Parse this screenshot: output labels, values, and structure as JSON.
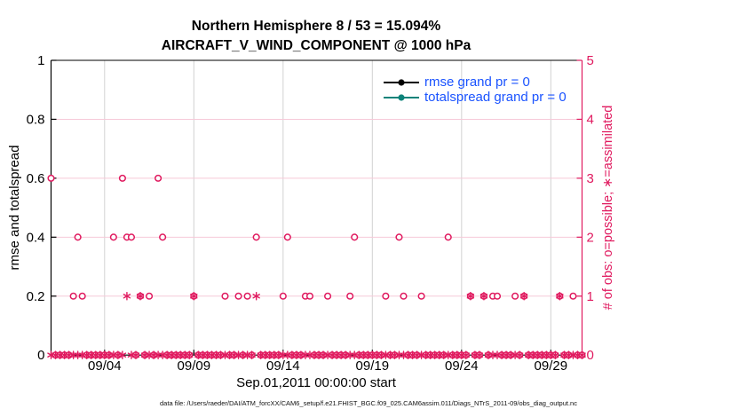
{
  "window": {
    "background": "#ffffff"
  },
  "colors": {
    "obs_pink": "#e01a5f",
    "grid_gray": "#d2d2d2",
    "grid_pink": "#f6c9d8",
    "axis_black": "#000000",
    "legend_text_blue": "#1a53ff",
    "rmse_black": "#000000",
    "totalspread_teal": "#0c837a"
  },
  "header": {
    "title": "Northern Hemisphere 8 / 53 = 15.094%",
    "subtitle": "AIRCRAFT_V_WIND_COMPONENT @ 1000 hPa"
  },
  "footer": {
    "data_file_note": "data file: /Users/raeder/DAI/ATM_forcXX/CAM6_setup/f.e21.FHIST_BGC.f09_025.CAM6assim.011/Diags_NTrS_2011-09/obs_diag_output.nc"
  },
  "chart_data": {
    "type": "scatter",
    "title": "Northern Hemisphere 8 / 53 = 15.094%",
    "subtitle": "AIRCRAFT_V_WIND_COMPONENT @ 1000 hPa",
    "xlabel": "Sep.01,2011 00:00:00 start",
    "ylabel_left": "rmse and totalspread",
    "ylabel_right": "# of obs: o=possible; ∗=assimilated",
    "x_axis_days_range": [
      0,
      29.75
    ],
    "x_ticks": [
      {
        "day": 3,
        "label": "09/04"
      },
      {
        "day": 8,
        "label": "09/09"
      },
      {
        "day": 13,
        "label": "09/14"
      },
      {
        "day": 18,
        "label": "09/19"
      },
      {
        "day": 23,
        "label": "09/24"
      },
      {
        "day": 28,
        "label": "09/29"
      }
    ],
    "ylim_left": [
      0,
      1
    ],
    "y_left_ticks": [
      {
        "value": 0,
        "label": "0"
      },
      {
        "value": 0.2,
        "label": "0.2"
      },
      {
        "value": 0.4,
        "label": "0.4"
      },
      {
        "value": 0.6,
        "label": "0.6"
      },
      {
        "value": 0.8,
        "label": "0.8"
      },
      {
        "value": 1,
        "label": "1"
      }
    ],
    "ylim_right": [
      0,
      5
    ],
    "y_right_ticks": [
      {
        "value": 0,
        "label": "0"
      },
      {
        "value": 1,
        "label": "1"
      },
      {
        "value": 2,
        "label": "2"
      },
      {
        "value": 3,
        "label": "3"
      },
      {
        "value": 4,
        "label": "4"
      },
      {
        "value": 5,
        "label": "5"
      }
    ],
    "grid": {
      "vertical_at_x_ticks": true,
      "horizontal_pink_at_counts": [
        1,
        2,
        3,
        4
      ]
    },
    "legend": {
      "position": "top-right-inside",
      "entries": [
        {
          "label": "rmse grand pr = 0",
          "color": "#000000"
        },
        {
          "label": "totalspread grand pr = 0",
          "color": "#0c837a"
        }
      ]
    },
    "series": [
      {
        "name": "rmse grand pr = 0",
        "color": "#000000",
        "points": []
      },
      {
        "name": "totalspread grand pr = 0",
        "color": "#0c837a",
        "points": []
      }
    ],
    "bin_interval_days": 0.25,
    "bins_note": "observation markers plotted every 0.25 day from Sep 1; bins not listed below have count 0",
    "obs_possible": {
      "marker": "circle",
      "total": 53,
      "points": [
        {
          "day": 0,
          "count": 3
        },
        {
          "day": 4.0,
          "count": 3
        },
        {
          "day": 6.0,
          "count": 3
        },
        {
          "day": 1.5,
          "count": 2
        },
        {
          "day": 3.5,
          "count": 2
        },
        {
          "day": 4.25,
          "count": 2
        },
        {
          "day": 4.5,
          "count": 2
        },
        {
          "day": 6.25,
          "count": 2
        },
        {
          "day": 11.5,
          "count": 2
        },
        {
          "day": 13.25,
          "count": 2
        },
        {
          "day": 17.0,
          "count": 2
        },
        {
          "day": 19.5,
          "count": 2
        },
        {
          "day": 22.25,
          "count": 2
        },
        {
          "day": 1.25,
          "count": 1
        },
        {
          "day": 1.75,
          "count": 1
        },
        {
          "day": 5.0,
          "count": 1
        },
        {
          "day": 5.5,
          "count": 1
        },
        {
          "day": 8.0,
          "count": 1
        },
        {
          "day": 9.75,
          "count": 1
        },
        {
          "day": 10.5,
          "count": 1
        },
        {
          "day": 11.0,
          "count": 1
        },
        {
          "day": 13.0,
          "count": 1
        },
        {
          "day": 14.25,
          "count": 1
        },
        {
          "day": 14.5,
          "count": 1
        },
        {
          "day": 15.5,
          "count": 1
        },
        {
          "day": 16.75,
          "count": 1
        },
        {
          "day": 18.75,
          "count": 1
        },
        {
          "day": 19.75,
          "count": 1
        },
        {
          "day": 20.75,
          "count": 1
        },
        {
          "day": 23.5,
          "count": 1
        },
        {
          "day": 24.25,
          "count": 1
        },
        {
          "day": 24.75,
          "count": 1
        },
        {
          "day": 25.0,
          "count": 1
        },
        {
          "day": 26.0,
          "count": 1
        },
        {
          "day": 26.5,
          "count": 1
        },
        {
          "day": 28.5,
          "count": 1
        },
        {
          "day": 29.25,
          "count": 1
        }
      ]
    },
    "obs_assimilated": {
      "marker": "asterisk",
      "total": 8,
      "points": [
        {
          "day": 4.25,
          "count": 1
        },
        {
          "day": 5.0,
          "count": 1
        },
        {
          "day": 8.0,
          "count": 1
        },
        {
          "day": 11.5,
          "count": 1
        },
        {
          "day": 23.5,
          "count": 1
        },
        {
          "day": 24.25,
          "count": 1
        },
        {
          "day": 26.5,
          "count": 1
        },
        {
          "day": 28.5,
          "count": 1
        }
      ]
    }
  }
}
